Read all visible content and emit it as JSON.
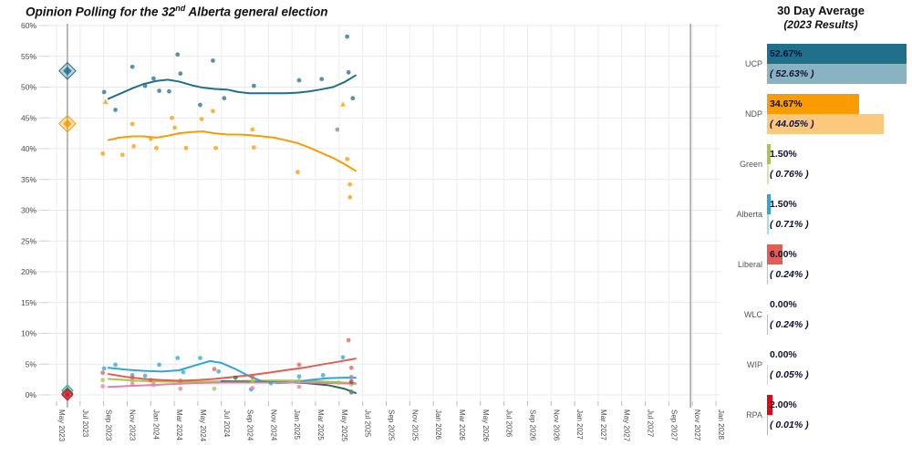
{
  "title": {
    "pre": "Opinion Polling for the 32",
    "sup": "nd",
    "post": " Alberta general election"
  },
  "legend": {
    "title": "30 Day Average",
    "subtitle": "(2023 Results)"
  },
  "chart_data": {
    "type": "scatter",
    "title": "Opinion Polling for the 32nd Alberta general election",
    "x_axis": {
      "tick_labels": [
        "May 2023",
        "Jul 2023",
        "Sep 2023",
        "Nov 2023",
        "Jan 2024",
        "Mar 2024",
        "May 2024",
        "Jul 2024",
        "Sep 2024",
        "Nov 2024",
        "Jan 2025",
        "Mar 2025",
        "May 2025",
        "Jul 2025",
        "Sep 2025",
        "Nov 2025",
        "Jan 2026",
        "Mar 2026",
        "May 2026",
        "Jul 2026",
        "Sep 2026",
        "Nov 2026",
        "Jan 2027",
        "Mar 2027",
        "May 2027",
        "Jul 2027",
        "Sep 2027",
        "Nov 2027",
        "Jan 2028"
      ],
      "start_frac": 2023.3333,
      "end_frac": 2028.0
    },
    "y_axis": {
      "min": 0,
      "max": 60,
      "step": 5,
      "format": "%"
    },
    "election_lines": [
      2023.41,
      2027.82
    ],
    "grid": true,
    "series": [
      {
        "name": "UCP",
        "color": "#20708c",
        "light": "#8ab3c2",
        "avg_label": "52.67%",
        "result_label": "( 52.63% )",
        "avg_val": 52.67,
        "result_val": 52.63,
        "line": [
          [
            2023.7,
            48.1
          ],
          [
            2023.78,
            48.9
          ],
          [
            2023.87,
            49.8
          ],
          [
            2023.95,
            50.5
          ],
          [
            2024.04,
            51.0
          ],
          [
            2024.12,
            51.2
          ],
          [
            2024.2,
            50.9
          ],
          [
            2024.29,
            50.3
          ],
          [
            2024.37,
            49.9
          ],
          [
            2024.45,
            49.7
          ],
          [
            2024.54,
            49.6
          ],
          [
            2024.62,
            49.2
          ],
          [
            2024.7,
            49.0
          ],
          [
            2024.79,
            49.0
          ],
          [
            2024.87,
            49.0
          ],
          [
            2024.95,
            49.0
          ],
          [
            2025.04,
            49.1
          ],
          [
            2025.12,
            49.3
          ],
          [
            2025.2,
            49.6
          ],
          [
            2025.29,
            50.0
          ],
          [
            2025.37,
            50.8
          ],
          [
            2025.45,
            51.9
          ]
        ],
        "points": [
          [
            2023.67,
            49.2
          ],
          [
            2023.75,
            46.3
          ],
          [
            2023.87,
            53.3
          ],
          [
            2023.96,
            50.2
          ],
          [
            2024.02,
            51.4
          ],
          [
            2024.06,
            49.4
          ],
          [
            2024.13,
            49.3
          ],
          [
            2024.19,
            55.3
          ],
          [
            2024.21,
            52.2
          ],
          [
            2024.35,
            47.1
          ],
          [
            2024.44,
            54.3
          ],
          [
            2024.52,
            48.2
          ],
          [
            2024.73,
            50.2
          ],
          [
            2025.05,
            51.1
          ],
          [
            2025.21,
            51.3
          ],
          [
            2025.39,
            58.2
          ],
          [
            2025.4,
            52.4
          ],
          [
            2025.43,
            48.2
          ]
        ],
        "triangles": []
      },
      {
        "name": "NDP",
        "color": "#f89c00",
        "light": "#fbc87e",
        "avg_label": "34.67%",
        "result_label": "( 44.05% )",
        "avg_val": 34.67,
        "result_val": 44.05,
        "line": [
          [
            2023.7,
            41.4
          ],
          [
            2023.78,
            41.8
          ],
          [
            2023.87,
            42.0
          ],
          [
            2023.95,
            42.0
          ],
          [
            2024.04,
            41.8
          ],
          [
            2024.12,
            42.1
          ],
          [
            2024.2,
            42.5
          ],
          [
            2024.29,
            42.7
          ],
          [
            2024.37,
            42.8
          ],
          [
            2024.45,
            42.5
          ],
          [
            2024.54,
            42.3
          ],
          [
            2024.62,
            42.3
          ],
          [
            2024.7,
            42.2
          ],
          [
            2024.79,
            42.0
          ],
          [
            2024.87,
            41.8
          ],
          [
            2024.95,
            41.4
          ],
          [
            2025.04,
            40.9
          ],
          [
            2025.12,
            40.2
          ],
          [
            2025.2,
            39.4
          ],
          [
            2025.29,
            38.5
          ],
          [
            2025.37,
            37.5
          ],
          [
            2025.45,
            36.4
          ]
        ],
        "points": [
          [
            2023.66,
            39.2
          ],
          [
            2023.8,
            39.0
          ],
          [
            2023.87,
            44.0
          ],
          [
            2023.88,
            40.4
          ],
          [
            2024.0,
            41.6
          ],
          [
            2024.04,
            40.1
          ],
          [
            2024.15,
            45.0
          ],
          [
            2024.17,
            43.4
          ],
          [
            2024.25,
            40.1
          ],
          [
            2024.36,
            44.8
          ],
          [
            2024.44,
            46.1
          ],
          [
            2024.46,
            40.1
          ],
          [
            2024.72,
            43.1
          ],
          [
            2024.73,
            40.2
          ],
          [
            2025.04,
            36.2
          ],
          [
            2025.39,
            38.3
          ],
          [
            2025.41,
            34.2
          ],
          [
            2025.41,
            32.1
          ]
        ],
        "triangles": [
          [
            2023.68,
            47.6
          ],
          [
            2025.36,
            47.2
          ]
        ]
      },
      {
        "name": "Green",
        "color": "#a8c452",
        "light": "#d5e5ad",
        "avg_label": "1.50%",
        "result_label": "( 0.76% )",
        "avg_val": 1.5,
        "result_val": 0.76,
        "line": [
          [
            2023.7,
            2.6
          ],
          [
            2023.9,
            2.3
          ],
          [
            2024.1,
            2.15
          ],
          [
            2024.3,
            2.1
          ],
          [
            2024.5,
            2.2
          ],
          [
            2024.7,
            2.3
          ],
          [
            2024.9,
            2.35
          ],
          [
            2025.1,
            2.3
          ],
          [
            2025.3,
            2.1
          ],
          [
            2025.45,
            1.9
          ]
        ],
        "points": [
          [
            2023.66,
            2.4
          ],
          [
            2023.87,
            2.2
          ],
          [
            2024.02,
            2.0
          ],
          [
            2024.21,
            1.9
          ],
          [
            2024.45,
            1.0
          ],
          [
            2024.72,
            2.2
          ],
          [
            2025.05,
            2.3
          ],
          [
            2025.33,
            2.0
          ],
          [
            2025.42,
            1.7
          ]
        ],
        "triangles": []
      },
      {
        "name": "Alberta",
        "color": "#2fa6d4",
        "light": "#a9d9ee",
        "avg_label": "1.50%",
        "result_label": "( 0.71% )",
        "avg_val": 1.5,
        "result_val": 0.71,
        "line": [
          [
            2023.7,
            4.4
          ],
          [
            2023.83,
            4.1
          ],
          [
            2023.95,
            3.9
          ],
          [
            2024.08,
            3.8
          ],
          [
            2024.2,
            4.0
          ],
          [
            2024.33,
            4.9
          ],
          [
            2024.42,
            5.5
          ],
          [
            2024.5,
            5.2
          ],
          [
            2024.6,
            4.2
          ],
          [
            2024.7,
            3.0
          ],
          [
            2024.79,
            2.2
          ],
          [
            2024.9,
            1.9
          ],
          [
            2025.0,
            2.0
          ],
          [
            2025.12,
            2.4
          ],
          [
            2025.25,
            2.7
          ],
          [
            2025.37,
            2.8
          ],
          [
            2025.45,
            2.8
          ]
        ],
        "points": [
          [
            2023.67,
            4.3
          ],
          [
            2023.75,
            4.9
          ],
          [
            2023.87,
            3.2
          ],
          [
            2023.96,
            3.1
          ],
          [
            2024.06,
            4.9
          ],
          [
            2024.19,
            6.0
          ],
          [
            2024.23,
            3.7
          ],
          [
            2024.35,
            6.0
          ],
          [
            2024.48,
            3.8
          ],
          [
            2024.71,
            0.9
          ],
          [
            2024.85,
            1.9
          ],
          [
            2025.05,
            3.0
          ],
          [
            2025.22,
            3.2
          ],
          [
            2025.36,
            6.1
          ],
          [
            2025.42,
            2.9
          ]
        ],
        "triangles": []
      },
      {
        "name": "Liberal",
        "color": "#e25d53",
        "light": "#f2b0ac",
        "avg_label": "6.00%",
        "result_label": "( 0.24% )",
        "avg_val": 6.0,
        "result_val": 0.24,
        "line": [
          [
            2023.7,
            3.4
          ],
          [
            2023.83,
            2.9
          ],
          [
            2023.95,
            2.6
          ],
          [
            2024.08,
            2.4
          ],
          [
            2024.2,
            2.3
          ],
          [
            2024.33,
            2.4
          ],
          [
            2024.45,
            2.6
          ],
          [
            2024.58,
            2.9
          ],
          [
            2024.7,
            3.2
          ],
          [
            2024.83,
            3.6
          ],
          [
            2024.95,
            4.0
          ],
          [
            2025.08,
            4.4
          ],
          [
            2025.2,
            4.9
          ],
          [
            2025.33,
            5.4
          ],
          [
            2025.45,
            5.9
          ]
        ],
        "points": [
          [
            2023.66,
            3.6
          ],
          [
            2023.87,
            2.8
          ],
          [
            2024.0,
            2.4
          ],
          [
            2024.21,
            2.3
          ],
          [
            2024.45,
            4.2
          ],
          [
            2024.72,
            2.9
          ],
          [
            2025.05,
            4.9
          ],
          [
            2025.4,
            8.9
          ],
          [
            2025.42,
            4.4
          ]
        ],
        "triangles": []
      },
      {
        "name": "WLC",
        "color": "#1e7448",
        "light": "#a5cdb3",
        "avg_label": "0.00%",
        "result_label": "( 0.24% )",
        "avg_val": 0.0,
        "result_val": 0.24,
        "line": [
          [
            2024.5,
            2.2
          ],
          [
            2024.65,
            2.15
          ],
          [
            2024.8,
            2.1
          ],
          [
            2024.95,
            2.05
          ],
          [
            2025.1,
            1.9
          ],
          [
            2025.25,
            1.6
          ],
          [
            2025.37,
            1.0
          ],
          [
            2025.45,
            0.3
          ]
        ],
        "points": [
          [
            2024.6,
            2.8
          ],
          [
            2025.42,
            0.5
          ]
        ],
        "triangles": []
      },
      {
        "name": "WIP",
        "color": "#e77fab",
        "light": "#f5c6da",
        "avg_label": "0.00%",
        "result_label": "( 0.05% )",
        "avg_val": 0.0,
        "result_val": 0.05,
        "line": [
          [
            2023.7,
            1.3
          ],
          [
            2023.9,
            1.5
          ],
          [
            2024.1,
            1.7
          ],
          [
            2024.3,
            1.9
          ],
          [
            2024.5,
            2.0
          ],
          [
            2024.7,
            2.0
          ],
          [
            2024.9,
            2.0
          ],
          [
            2025.1,
            2.0
          ],
          [
            2025.3,
            1.9
          ],
          [
            2025.45,
            1.8
          ]
        ],
        "points": [
          [
            2023.66,
            1.4
          ],
          [
            2023.87,
            1.7
          ],
          [
            2024.02,
            1.6
          ],
          [
            2024.21,
            1.0
          ],
          [
            2024.72,
            1.1
          ],
          [
            2025.05,
            1.3
          ],
          [
            2025.42,
            2.7
          ]
        ],
        "triangles": []
      },
      {
        "name": "RPA",
        "color": "#e30613",
        "light": "#f19a9e",
        "point_color": "#8d3f3f",
        "avg_label": "2.00%",
        "result_label": "( 0.01% )",
        "avg_val": 2.0,
        "result_val": 0.01,
        "line": [],
        "points": [
          [
            2025.42,
            2.1
          ]
        ],
        "triangles": []
      }
    ],
    "other_points": {
      "name": "Other",
      "color": "#7d8c8c",
      "points": [
        [
          2025.32,
          43.1
        ],
        [
          2025.42,
          0.4
        ]
      ]
    }
  }
}
